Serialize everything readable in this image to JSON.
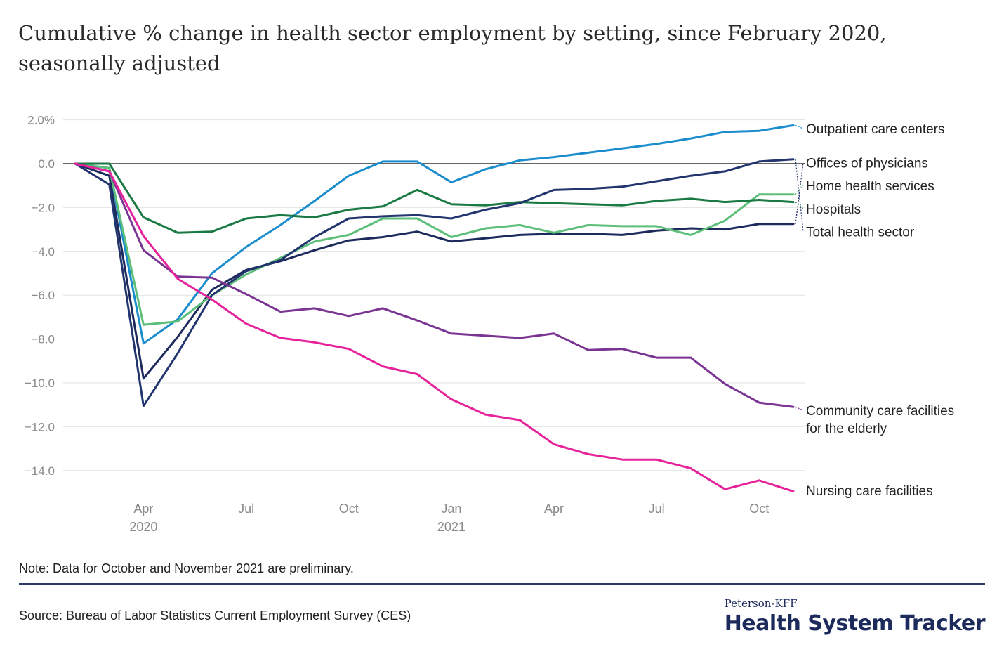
{
  "title": "Cumulative % change in health sector employment by setting, since February 2020, seasonally adjusted",
  "note": "Note: Data for October and November 2021 are preliminary.",
  "source": "Source: Bureau of Labor Statistics Current Employment Survey (CES)",
  "brand": {
    "small": "Peterson-KFF",
    "big": "Health System Tracker",
    "color": "#1c2a5c"
  },
  "chart_data": {
    "type": "line",
    "ylim": [
      -15,
      2.6
    ],
    "y_ticks": [
      2,
      0,
      -2,
      -4,
      -6,
      -8,
      -10,
      -12,
      -14
    ],
    "y_tick_labels": [
      "2.0%",
      "0.0",
      "−2.0",
      "−4.0",
      "−6.0",
      "−8.0",
      "−10.0",
      "−12.0",
      "−14.0"
    ],
    "x": [
      "2020-02",
      "2020-03",
      "2020-04",
      "2020-05",
      "2020-06",
      "2020-07",
      "2020-08",
      "2020-09",
      "2020-10",
      "2020-11",
      "2020-12",
      "2021-01",
      "2021-02",
      "2021-03",
      "2021-04",
      "2021-05",
      "2021-06",
      "2021-07",
      "2021-08",
      "2021-09",
      "2021-10",
      "2021-11"
    ],
    "x_ticks": [
      {
        "x": "2020-04",
        "label": "Apr",
        "year": "2020"
      },
      {
        "x": "2020-07",
        "label": "Jul",
        "year": ""
      },
      {
        "x": "2020-10",
        "label": "Oct",
        "year": ""
      },
      {
        "x": "2021-01",
        "label": "Jan",
        "year": "2021"
      },
      {
        "x": "2021-04",
        "label": "Apr",
        "year": ""
      },
      {
        "x": "2021-07",
        "label": "Jul",
        "year": ""
      },
      {
        "x": "2021-10",
        "label": "Oct",
        "year": ""
      }
    ],
    "zero_line": true,
    "grid": true,
    "legend": "direct labels at right",
    "series": [
      {
        "name": "Outpatient care centers",
        "color": "#1b8ccc",
        "values": [
          0,
          -0.2,
          -8.2,
          -7.1,
          -5.0,
          -3.8,
          -2.8,
          -1.7,
          -0.55,
          0.1,
          0.1,
          -0.85,
          -0.25,
          0.15,
          0.3,
          0.5,
          0.7,
          0.9,
          1.15,
          1.45,
          1.5,
          1.75
        ]
      },
      {
        "name": "Offices of physicians",
        "color": "#1c2a5c",
        "values": [
          0,
          -0.55,
          -9.8,
          -7.9,
          -5.75,
          -4.85,
          -4.45,
          -3.95,
          -3.5,
          -3.35,
          -3.1,
          -3.55,
          -3.4,
          -3.25,
          -3.2,
          -3.2,
          -3.25,
          -3.05,
          -2.95,
          -3.0,
          -2.75,
          -2.75
        ]
      },
      {
        "name": "Home health services",
        "color": "#5dbf7a",
        "values": [
          0,
          -0.2,
          -7.35,
          -7.2,
          -6.0,
          -5.05,
          -4.3,
          -3.55,
          -3.25,
          -2.5,
          -2.5,
          -3.35,
          -2.95,
          -2.8,
          -3.15,
          -2.8,
          -2.85,
          -2.85,
          -3.25,
          -2.6,
          -1.4,
          -1.4
        ]
      },
      {
        "name": "Hospitals",
        "color": "#1a7a43",
        "values": [
          0,
          0,
          -2.45,
          -3.15,
          -3.1,
          -2.5,
          -2.35,
          -2.45,
          -2.1,
          -1.95,
          -1.2,
          -1.85,
          -1.9,
          -1.75,
          -1.8,
          -1.85,
          -1.9,
          -1.7,
          -1.6,
          -1.75,
          -1.65,
          -1.75
        ]
      },
      {
        "name": "Total health sector",
        "color": "#22356e",
        "values": [
          0,
          -0.95,
          -11.05,
          -8.65,
          -6.0,
          -4.9,
          -4.4,
          -3.35,
          -2.5,
          -2.4,
          -2.35,
          -2.5,
          -2.1,
          -1.8,
          -1.2,
          -1.15,
          -1.05,
          -0.8,
          -0.55,
          -0.35,
          0.1,
          0.2
        ]
      },
      {
        "name": "Community care facilities for the elderly",
        "color": "#7a3593",
        "values": [
          0,
          -0.35,
          -3.95,
          -5.15,
          -5.2,
          -5.95,
          -6.75,
          -6.6,
          -6.95,
          -6.6,
          -7.15,
          -7.75,
          -7.85,
          -7.95,
          -7.75,
          -8.5,
          -8.45,
          -8.85,
          -8.85,
          -10.05,
          -10.9,
          -11.1
        ]
      },
      {
        "name": "Nursing care facilities",
        "color": "#e6239b",
        "values": [
          0,
          -0.35,
          -3.3,
          -5.25,
          -6.2,
          -7.3,
          -7.95,
          -8.15,
          -8.45,
          -9.25,
          -9.6,
          -10.75,
          -11.45,
          -11.7,
          -12.8,
          -13.25,
          -13.5,
          -13.5,
          -13.9,
          -14.85,
          -14.45,
          -14.95
        ]
      }
    ],
    "end_labels": [
      {
        "lines": [
          "Outpatient care centers"
        ],
        "series": "Outpatient care centers",
        "y": 1.6
      },
      {
        "lines": [
          "Offices of physicians"
        ],
        "series": "Offices of physicians",
        "y": 0.05
      },
      {
        "lines": [
          "Home health services"
        ],
        "series": "Home health services",
        "y": -1.0
      },
      {
        "lines": [
          "Hospitals"
        ],
        "series": "Hospitals",
        "y": -2.05
      },
      {
        "lines": [
          "Total health sector"
        ],
        "series": "Total health sector",
        "y": -3.1
      },
      {
        "lines": [
          "Community care facilities",
          "for the elderly"
        ],
        "series": "Community care facilities for the elderly",
        "y": -11.25
      },
      {
        "lines": [
          "Nursing care facilities"
        ],
        "series": "Nursing care facilities",
        "y": -14.9
      }
    ]
  }
}
